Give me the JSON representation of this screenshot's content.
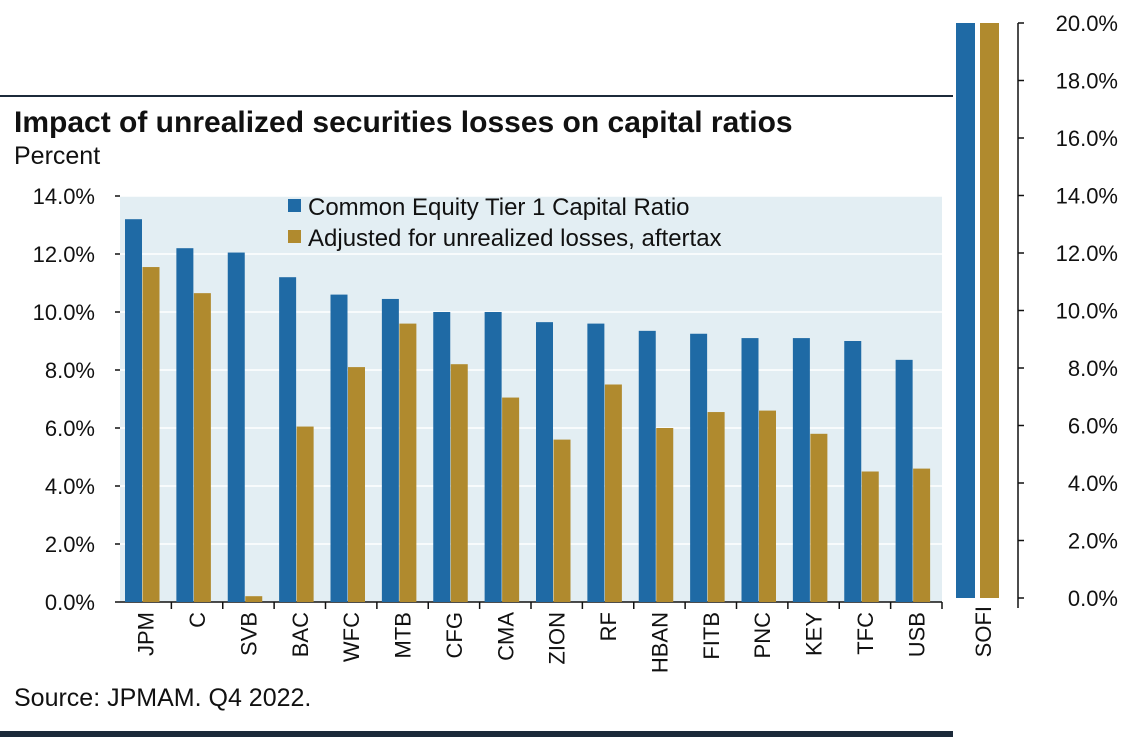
{
  "title": "Impact of unrealized securities losses on capital ratios",
  "subtitle": "Percent",
  "source": "Source: JPMAM. Q4 2022.",
  "colors": {
    "cet1": "#1f6aa5",
    "adjusted": "#b08a2e",
    "plot_bg": "#e3eef3"
  },
  "chart_data": [
    {
      "type": "bar",
      "categories": [
        "JPM",
        "C",
        "SVB",
        "BAC",
        "WFC",
        "MTB",
        "CFG",
        "CMA",
        "ZION",
        "RF",
        "HBAN",
        "FITB",
        "PNC",
        "KEY",
        "TFC",
        "USB"
      ],
      "series": [
        {
          "name": "Common Equity Tier 1 Capital Ratio",
          "values": [
            13.2,
            12.2,
            12.05,
            11.2,
            10.6,
            10.45,
            10.0,
            10.0,
            9.65,
            9.6,
            9.35,
            9.25,
            9.1,
            9.1,
            9.0,
            8.35
          ]
        },
        {
          "name": "Adjusted for unrealized losses, aftertax",
          "values": [
            11.55,
            10.65,
            0.2,
            6.05,
            8.1,
            9.6,
            8.2,
            7.05,
            5.6,
            7.5,
            6.0,
            6.55,
            6.6,
            5.8,
            4.5,
            4.6
          ]
        }
      ],
      "yticks": [
        "0.0%",
        "2.0%",
        "4.0%",
        "6.0%",
        "8.0%",
        "10.0%",
        "12.0%",
        "14.0%"
      ],
      "ylim": [
        0,
        14
      ],
      "legend": "top-center",
      "grid": true
    },
    {
      "type": "bar",
      "categories": [
        "SOFI"
      ],
      "series": [
        {
          "values": [
            20.0
          ]
        },
        {
          "values": [
            20.0
          ]
        }
      ],
      "yticks": [
        "0.0%",
        "2.0%",
        "4.0%",
        "6.0%",
        "8.0%",
        "10.0%",
        "12.0%",
        "14.0%",
        "16.0%",
        "18.0%",
        "20.0%"
      ],
      "ylim": [
        0,
        20
      ],
      "axis_side": "right",
      "grid": false
    }
  ]
}
